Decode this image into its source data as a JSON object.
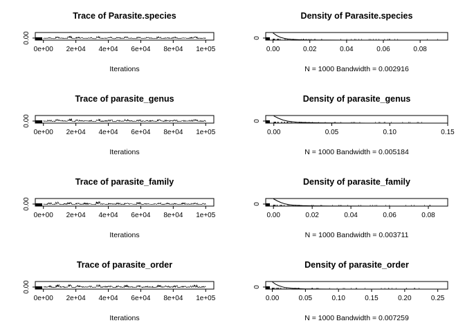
{
  "figure": {
    "panels": [
      {
        "row": 0,
        "trace": {
          "title": "Trace of Parasite.species",
          "xlabel": "Iterations",
          "xticks": [
            "0e+00",
            "2e+04",
            "4e+04",
            "6e+04",
            "8e+04",
            "1e+05"
          ],
          "yticks": [
            "0.00"
          ]
        },
        "density": {
          "title": "Density of Parasite.species",
          "xlabel": "N = 1000   Bandwidth = 0.002916",
          "xticks": [
            "0.00",
            "0.02",
            "0.04",
            "0.06",
            "0.08"
          ],
          "yticks": [
            "0"
          ]
        }
      },
      {
        "row": 1,
        "trace": {
          "title": "Trace of parasite_genus",
          "xlabel": "Iterations",
          "xticks": [
            "0e+00",
            "2e+04",
            "4e+04",
            "6e+04",
            "8e+04",
            "1e+05"
          ],
          "yticks": [
            "0.00"
          ]
        },
        "density": {
          "title": "Density of parasite_genus",
          "xlabel": "N = 1000   Bandwidth = 0.005184",
          "xticks": [
            "0.00",
            "0.05",
            "0.10",
            "0.15"
          ],
          "yticks": [
            "0"
          ]
        }
      },
      {
        "row": 2,
        "trace": {
          "title": "Trace of parasite_family",
          "xlabel": "Iterations",
          "xticks": [
            "0e+00",
            "2e+04",
            "4e+04",
            "6e+04",
            "8e+04",
            "1e+05"
          ],
          "yticks": [
            "0.00"
          ]
        },
        "density": {
          "title": "Density of parasite_family",
          "xlabel": "N = 1000   Bandwidth = 0.003711",
          "xticks": [
            "0.00",
            "0.02",
            "0.04",
            "0.06",
            "0.08"
          ],
          "yticks": [
            "0"
          ]
        }
      },
      {
        "row": 3,
        "trace": {
          "title": "Trace of parasite_order",
          "xlabel": "Iterations",
          "xticks": [
            "0e+00",
            "2e+04",
            "4e+04",
            "6e+04",
            "8e+04",
            "1e+05"
          ],
          "yticks": [
            "0.00"
          ]
        },
        "density": {
          "title": "Density of parasite_order",
          "xlabel": "N = 1000   Bandwidth = 0.007259",
          "xticks": [
            "0.00",
            "0.05",
            "0.10",
            "0.15",
            "0.20",
            "0.25"
          ],
          "yticks": [
            "0"
          ]
        }
      }
    ]
  },
  "chart_data": [
    {
      "type": "line",
      "title": "Trace of Parasite.species",
      "xlabel": "Iterations",
      "ylabel": "",
      "xlim": [
        -5000,
        105000
      ],
      "ylim": [
        0,
        0.01
      ],
      "x_ticks": [
        0,
        20000,
        40000,
        60000,
        80000,
        100000
      ],
      "y_ticks": [
        0
      ],
      "n": 1000,
      "x": [
        0,
        2500,
        5000,
        7500,
        10000,
        12500,
        15000,
        17500,
        20000,
        22500,
        25000,
        27500,
        30000,
        32500,
        35000,
        37500,
        40000,
        42500,
        45000,
        47500,
        50000,
        52500,
        55000,
        57500,
        60000,
        62500,
        65000,
        67500,
        70000,
        72500,
        75000,
        77500,
        80000,
        82500,
        85000,
        87500,
        90000,
        92500,
        95000,
        97500,
        100000
      ],
      "y": [
        0.0002,
        0.0004,
        0.0001,
        0.0006,
        0.0003,
        0.0002,
        0.0008,
        0.0001,
        0.0005,
        0.0003,
        0.0002,
        0.0004,
        0.0001,
        0.0007,
        0.0002,
        0.0003,
        0.0005,
        0.0001,
        0.0004,
        0.0002,
        0.0006,
        0.0003,
        0.0001,
        0.0005,
        0.0002,
        0.0004,
        0.0003,
        0.0001,
        0.0006,
        0.0002,
        0.0004,
        0.0003,
        0.0005,
        0.0001,
        0.0003,
        0.0002,
        0.0004,
        0.0006,
        0.0002,
        0.0003,
        0.0001
      ]
    },
    {
      "type": "line",
      "title": "Density of Parasite.species",
      "xlabel": "N = 1000   Bandwidth = 0.002916",
      "ylabel": "",
      "xlim": [
        -0.004,
        0.095
      ],
      "ylim": [
        0,
        300
      ],
      "x_ticks": [
        0,
        0.02,
        0.04,
        0.06,
        0.08
      ],
      "y_ticks": [
        0
      ],
      "x": [
        0,
        0.002,
        0.004,
        0.006,
        0.008,
        0.01,
        0.015,
        0.02,
        0.025,
        0.03,
        0.04,
        0.05,
        0.06,
        0.07,
        0.08,
        0.09
      ],
      "y": [
        280,
        180,
        110,
        70,
        45,
        30,
        15,
        8,
        4,
        2,
        1,
        0.5,
        0.3,
        0.2,
        0.1,
        0.05
      ]
    },
    {
      "type": "line",
      "title": "Trace of parasite_genus",
      "xlabel": "Iterations",
      "ylabel": "",
      "xlim": [
        -5000,
        105000
      ],
      "ylim": [
        0,
        0.01
      ],
      "x_ticks": [
        0,
        20000,
        40000,
        60000,
        80000,
        100000
      ],
      "y_ticks": [
        0
      ],
      "n": 1000,
      "x": [
        0,
        2500,
        5000,
        7500,
        10000,
        12500,
        15000,
        17500,
        20000,
        22500,
        25000,
        27500,
        30000,
        32500,
        35000,
        37500,
        40000,
        42500,
        45000,
        47500,
        50000,
        52500,
        55000,
        57500,
        60000,
        62500,
        65000,
        67500,
        70000,
        72500,
        75000,
        77500,
        80000,
        82500,
        85000,
        87500,
        90000,
        92500,
        95000,
        97500,
        100000
      ],
      "y": [
        0.0003,
        0.0005,
        0.0002,
        0.0007,
        0.0004,
        0.0003,
        0.0009,
        0.0002,
        0.0006,
        0.0004,
        0.0003,
        0.0005,
        0.0002,
        0.0008,
        0.0003,
        0.0004,
        0.0006,
        0.0002,
        0.0005,
        0.0003,
        0.0007,
        0.0004,
        0.0002,
        0.0006,
        0.0003,
        0.0005,
        0.0004,
        0.0002,
        0.0007,
        0.0003,
        0.0005,
        0.0004,
        0.0006,
        0.0002,
        0.0004,
        0.0003,
        0.0005,
        0.0007,
        0.0003,
        0.0004,
        0.0002
      ]
    },
    {
      "type": "line",
      "title": "Density of parasite_genus",
      "xlabel": "N = 1000   Bandwidth = 0.005184",
      "ylabel": "",
      "xlim": [
        -0.007,
        0.15
      ],
      "ylim": [
        0,
        150
      ],
      "x_ticks": [
        0,
        0.05,
        0.1,
        0.15
      ],
      "y_ticks": [
        0
      ],
      "x": [
        0,
        0.004,
        0.008,
        0.012,
        0.016,
        0.02,
        0.03,
        0.04,
        0.05,
        0.06,
        0.07,
        0.08,
        0.1,
        0.12,
        0.14
      ],
      "y": [
        140,
        95,
        60,
        40,
        27,
        18,
        9,
        5,
        3,
        1.5,
        0.8,
        0.4,
        0.2,
        0.1,
        0.05
      ]
    },
    {
      "type": "line",
      "title": "Trace of parasite_family",
      "xlabel": "Iterations",
      "ylabel": "",
      "xlim": [
        -5000,
        105000
      ],
      "ylim": [
        0,
        0.01
      ],
      "x_ticks": [
        0,
        20000,
        40000,
        60000,
        80000,
        100000
      ],
      "y_ticks": [
        0
      ],
      "n": 1000,
      "x": [
        0,
        2500,
        5000,
        7500,
        10000,
        12500,
        15000,
        17500,
        20000,
        22500,
        25000,
        27500,
        30000,
        32500,
        35000,
        37500,
        40000,
        42500,
        45000,
        47500,
        50000,
        52500,
        55000,
        57500,
        60000,
        62500,
        65000,
        67500,
        70000,
        72500,
        75000,
        77500,
        80000,
        82500,
        85000,
        87500,
        90000,
        92500,
        95000,
        97500,
        100000
      ],
      "y": [
        0.0002,
        0.0006,
        0.0003,
        0.0008,
        0.0002,
        0.0004,
        0.0007,
        0.0002,
        0.0005,
        0.0003,
        0.0006,
        0.0004,
        0.0002,
        0.0009,
        0.0003,
        0.0002,
        0.0005,
        0.0003,
        0.0006,
        0.0002,
        0.0005,
        0.0004,
        0.0002,
        0.0007,
        0.0003,
        0.0004,
        0.0002,
        0.0003,
        0.0006,
        0.0002,
        0.0005,
        0.0003,
        0.0004,
        0.0002,
        0.0006,
        0.0003,
        0.0004,
        0.0005,
        0.0002,
        0.0004,
        0.0002
      ]
    },
    {
      "type": "line",
      "title": "Density of parasite_family",
      "xlabel": "N = 1000   Bandwidth = 0.003711",
      "ylabel": "",
      "xlim": [
        -0.004,
        0.09
      ],
      "ylim": [
        0,
        220
      ],
      "x_ticks": [
        0,
        0.02,
        0.04,
        0.06,
        0.08
      ],
      "y_ticks": [
        0
      ],
      "x": [
        0,
        0.002,
        0.004,
        0.006,
        0.008,
        0.01,
        0.015,
        0.02,
        0.025,
        0.03,
        0.04,
        0.05,
        0.06,
        0.07,
        0.08,
        0.09
      ],
      "y": [
        210,
        150,
        100,
        65,
        42,
        28,
        14,
        7,
        3.5,
        2,
        1,
        0.5,
        0.3,
        0.2,
        0.1,
        0.05
      ]
    },
    {
      "type": "line",
      "title": "Trace of parasite_order",
      "xlabel": "Iterations",
      "ylabel": "",
      "xlim": [
        -5000,
        105000
      ],
      "ylim": [
        0,
        0.01
      ],
      "x_ticks": [
        0,
        20000,
        40000,
        60000,
        80000,
        100000
      ],
      "y_ticks": [
        0
      ],
      "n": 1000,
      "x": [
        0,
        2500,
        5000,
        7500,
        10000,
        12500,
        15000,
        17500,
        20000,
        22500,
        25000,
        27500,
        30000,
        32500,
        35000,
        37500,
        40000,
        42500,
        45000,
        47500,
        50000,
        52500,
        55000,
        57500,
        60000,
        62500,
        65000,
        67500,
        70000,
        72500,
        75000,
        77500,
        80000,
        82500,
        85000,
        87500,
        90000,
        92500,
        95000,
        97500,
        100000
      ],
      "y": [
        0.0003,
        0.0006,
        0.0002,
        0.0009,
        0.0004,
        0.0003,
        0.001,
        0.0002,
        0.0007,
        0.0004,
        0.0003,
        0.0006,
        0.0002,
        0.0009,
        0.0003,
        0.0005,
        0.0007,
        0.0002,
        0.0006,
        0.0003,
        0.0008,
        0.0004,
        0.0002,
        0.0007,
        0.0003,
        0.0006,
        0.0004,
        0.0002,
        0.0008,
        0.0003,
        0.0006,
        0.0004,
        0.0007,
        0.0002,
        0.0005,
        0.0003,
        0.0006,
        0.0008,
        0.0003,
        0.0004,
        0.0002
      ]
    },
    {
      "type": "line",
      "title": "Density of parasite_order",
      "xlabel": "N = 1000   Bandwidth = 0.007259",
      "ylabel": "",
      "xlim": [
        -0.01,
        0.265
      ],
      "ylim": [
        0,
        100
      ],
      "x_ticks": [
        0,
        0.05,
        0.1,
        0.15,
        0.2,
        0.25
      ],
      "y_ticks": [
        0
      ],
      "x": [
        0,
        0.005,
        0.01,
        0.015,
        0.02,
        0.03,
        0.04,
        0.05,
        0.06,
        0.08,
        0.1,
        0.12,
        0.15,
        0.2,
        0.25
      ],
      "y": [
        95,
        65,
        45,
        30,
        20,
        10,
        5,
        3,
        1.5,
        0.7,
        0.3,
        0.2,
        0.1,
        0.05,
        0.02
      ]
    }
  ]
}
